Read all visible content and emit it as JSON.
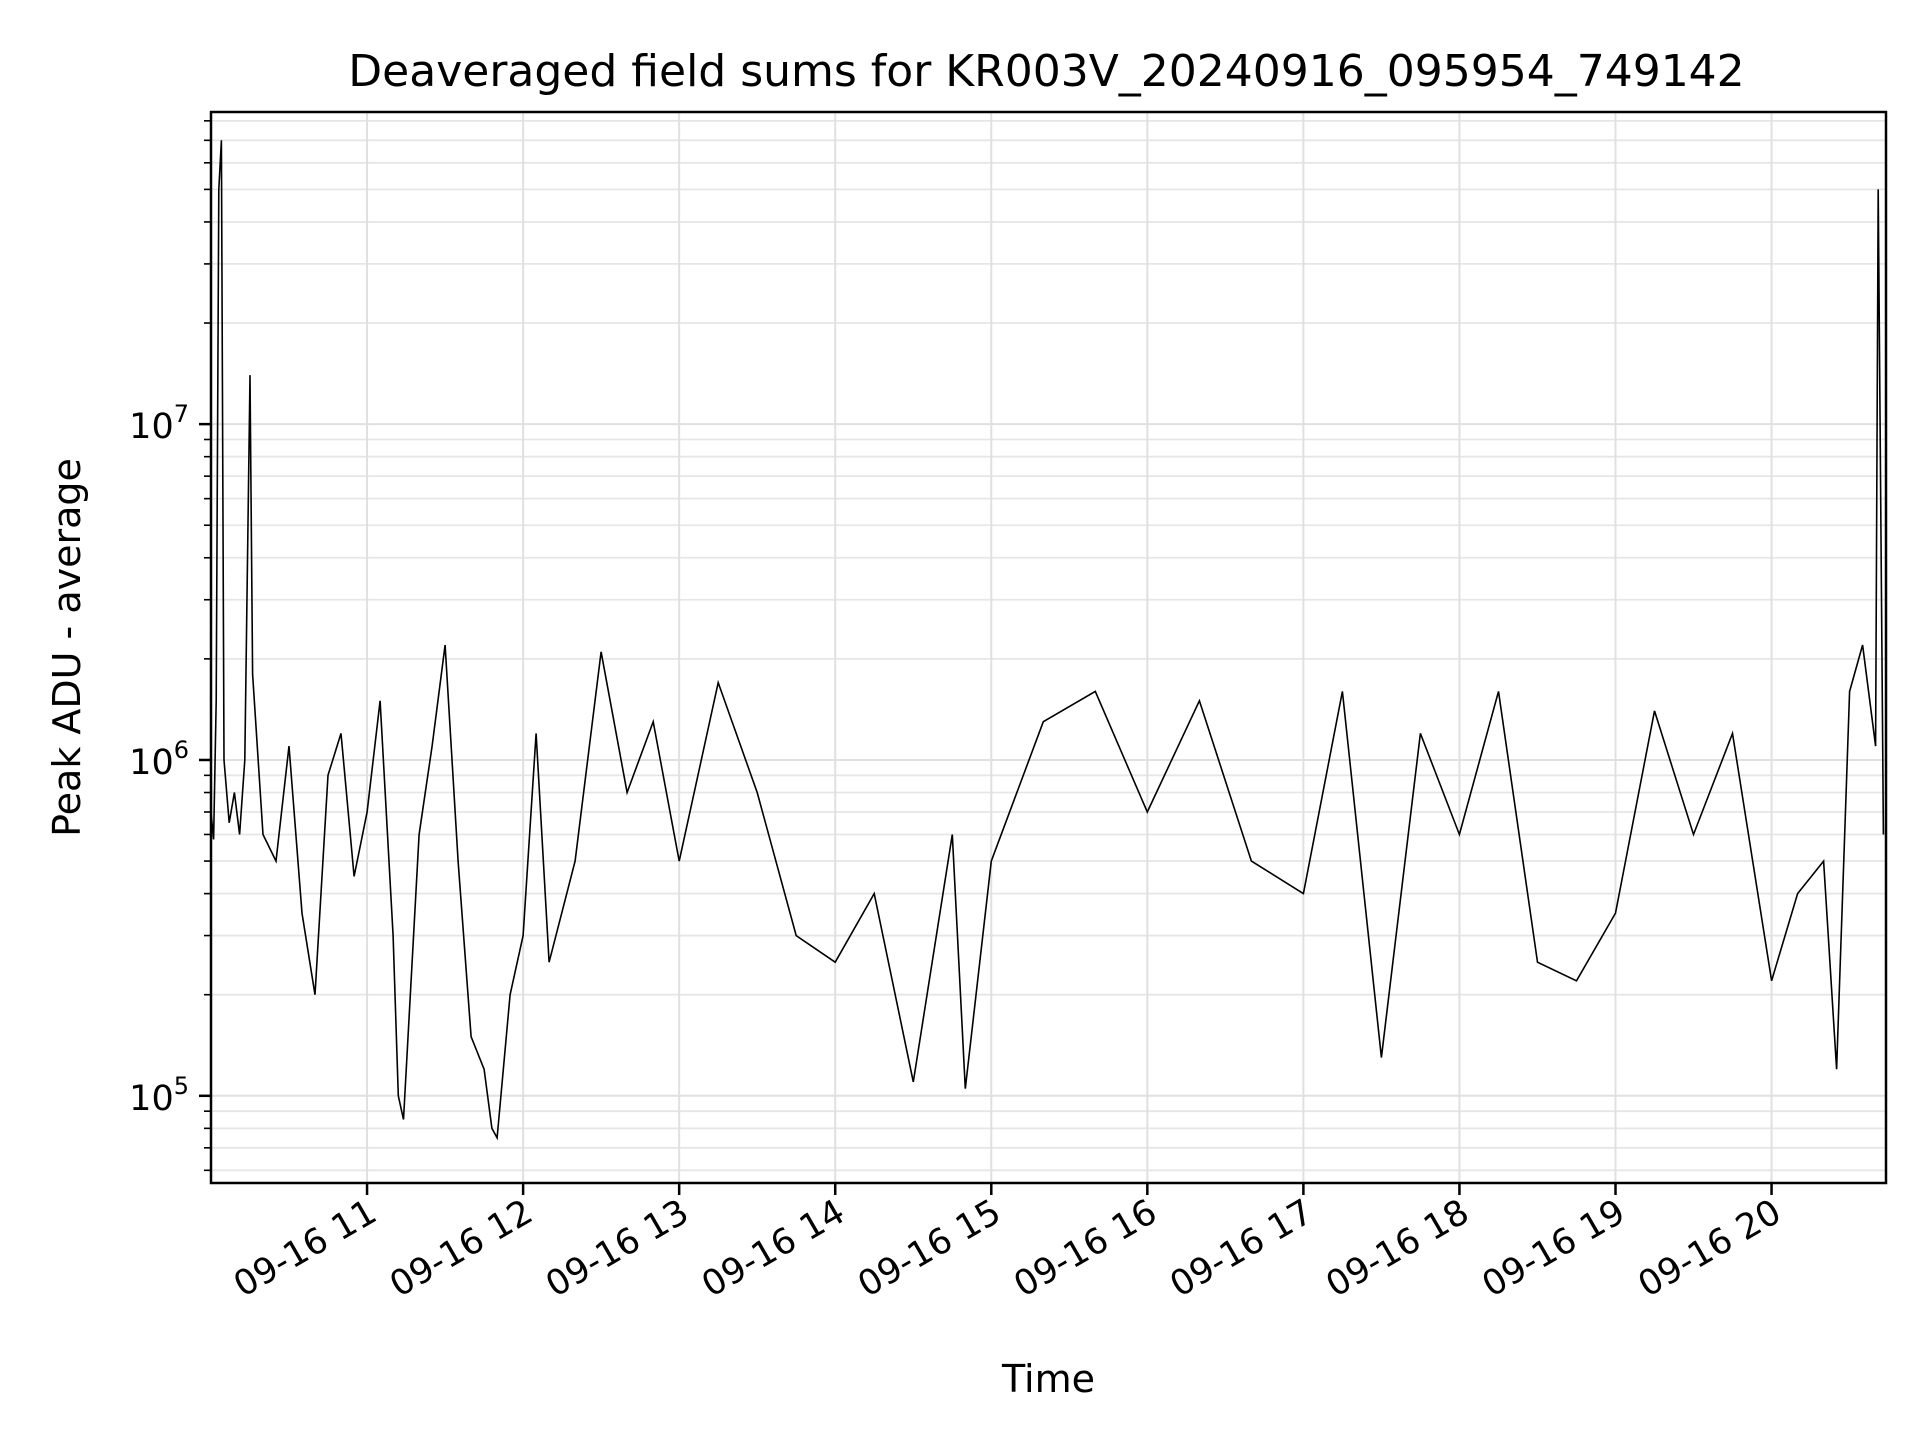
{
  "chart_data": {
    "type": "line",
    "title": "Deaveraged field sums for KR003V_20240916_095954_749142",
    "xlabel": "Time",
    "ylabel": "Peak ADU - average",
    "yscale": "log",
    "ylim": [
      55000,
      85000000
    ],
    "xlim": [
      "2024-09-16 10:00",
      "2024-09-16 20:44"
    ],
    "grid": true,
    "legend": "none",
    "line_color": "#000000",
    "x_ticks": [
      {
        "value": "2024-09-16 11:00",
        "label": "09-16 11"
      },
      {
        "value": "2024-09-16 12:00",
        "label": "09-16 12"
      },
      {
        "value": "2024-09-16 13:00",
        "label": "09-16 13"
      },
      {
        "value": "2024-09-16 14:00",
        "label": "09-16 14"
      },
      {
        "value": "2024-09-16 15:00",
        "label": "09-16 15"
      },
      {
        "value": "2024-09-16 16:00",
        "label": "09-16 16"
      },
      {
        "value": "2024-09-16 17:00",
        "label": "09-16 17"
      },
      {
        "value": "2024-09-16 18:00",
        "label": "09-16 18"
      },
      {
        "value": "2024-09-16 19:00",
        "label": "09-16 19"
      },
      {
        "value": "2024-09-16 20:00",
        "label": "09-16 20"
      }
    ],
    "y_ticks": [
      {
        "value": 100000,
        "base": "10",
        "exp": "5"
      },
      {
        "value": 1000000,
        "base": "10",
        "exp": "6"
      },
      {
        "value": 10000000,
        "base": "10",
        "exp": "7"
      }
    ],
    "series": [
      {
        "values": [
          [
            "2024-09-16 10:00",
            700000
          ],
          [
            "2024-09-16 10:01",
            580000
          ],
          [
            "2024-09-16 10:02",
            1500000
          ],
          [
            "2024-09-16 10:03",
            50000000
          ],
          [
            "2024-09-16 10:04",
            70000000
          ],
          [
            "2024-09-16 10:05",
            1000000
          ],
          [
            "2024-09-16 10:07",
            650000
          ],
          [
            "2024-09-16 10:09",
            800000
          ],
          [
            "2024-09-16 10:11",
            600000
          ],
          [
            "2024-09-16 10:13",
            1000000
          ],
          [
            "2024-09-16 10:15",
            14000000
          ],
          [
            "2024-09-16 10:16",
            1800000
          ],
          [
            "2024-09-16 10:20",
            600000
          ],
          [
            "2024-09-16 10:25",
            500000
          ],
          [
            "2024-09-16 10:30",
            1100000
          ],
          [
            "2024-09-16 10:35",
            350000
          ],
          [
            "2024-09-16 10:40",
            200000
          ],
          [
            "2024-09-16 10:45",
            900000
          ],
          [
            "2024-09-16 10:50",
            1200000
          ],
          [
            "2024-09-16 10:55",
            450000
          ],
          [
            "2024-09-16 11:00",
            700000
          ],
          [
            "2024-09-16 11:05",
            1500000
          ],
          [
            "2024-09-16 11:10",
            300000
          ],
          [
            "2024-09-16 11:12",
            100000
          ],
          [
            "2024-09-16 11:14",
            85000
          ],
          [
            "2024-09-16 11:20",
            600000
          ],
          [
            "2024-09-16 11:25",
            1100000
          ],
          [
            "2024-09-16 11:30",
            2200000
          ],
          [
            "2024-09-16 11:35",
            500000
          ],
          [
            "2024-09-16 11:40",
            150000
          ],
          [
            "2024-09-16 11:45",
            120000
          ],
          [
            "2024-09-16 11:48",
            80000
          ],
          [
            "2024-09-16 11:50",
            75000
          ],
          [
            "2024-09-16 11:55",
            200000
          ],
          [
            "2024-09-16 12:00",
            300000
          ],
          [
            "2024-09-16 12:05",
            1200000
          ],
          [
            "2024-09-16 12:10",
            250000
          ],
          [
            "2024-09-16 12:20",
            500000
          ],
          [
            "2024-09-16 12:30",
            2100000
          ],
          [
            "2024-09-16 12:40",
            800000
          ],
          [
            "2024-09-16 12:50",
            1300000
          ],
          [
            "2024-09-16 13:00",
            500000
          ],
          [
            "2024-09-16 13:15",
            1700000
          ],
          [
            "2024-09-16 13:30",
            800000
          ],
          [
            "2024-09-16 13:45",
            300000
          ],
          [
            "2024-09-16 14:00",
            250000
          ],
          [
            "2024-09-16 14:15",
            400000
          ],
          [
            "2024-09-16 14:30",
            110000
          ],
          [
            "2024-09-16 14:45",
            600000
          ],
          [
            "2024-09-16 14:50",
            105000
          ],
          [
            "2024-09-16 15:00",
            500000
          ],
          [
            "2024-09-16 15:20",
            1300000
          ],
          [
            "2024-09-16 15:40",
            1600000
          ],
          [
            "2024-09-16 16:00",
            700000
          ],
          [
            "2024-09-16 16:20",
            1500000
          ],
          [
            "2024-09-16 16:40",
            500000
          ],
          [
            "2024-09-16 17:00",
            400000
          ],
          [
            "2024-09-16 17:15",
            1600000
          ],
          [
            "2024-09-16 17:30",
            130000
          ],
          [
            "2024-09-16 17:45",
            1200000
          ],
          [
            "2024-09-16 18:00",
            600000
          ],
          [
            "2024-09-16 18:15",
            1600000
          ],
          [
            "2024-09-16 18:30",
            250000
          ],
          [
            "2024-09-16 18:45",
            220000
          ],
          [
            "2024-09-16 19:00",
            350000
          ],
          [
            "2024-09-16 19:15",
            1400000
          ],
          [
            "2024-09-16 19:30",
            600000
          ],
          [
            "2024-09-16 19:45",
            1200000
          ],
          [
            "2024-09-16 20:00",
            220000
          ],
          [
            "2024-09-16 20:10",
            400000
          ],
          [
            "2024-09-16 20:20",
            500000
          ],
          [
            "2024-09-16 20:25",
            120000
          ],
          [
            "2024-09-16 20:30",
            1600000
          ],
          [
            "2024-09-16 20:35",
            2200000
          ],
          [
            "2024-09-16 20:40",
            1100000
          ],
          [
            "2024-09-16 20:41",
            50000000
          ],
          [
            "2024-09-16 20:43",
            600000
          ]
        ]
      }
    ]
  }
}
